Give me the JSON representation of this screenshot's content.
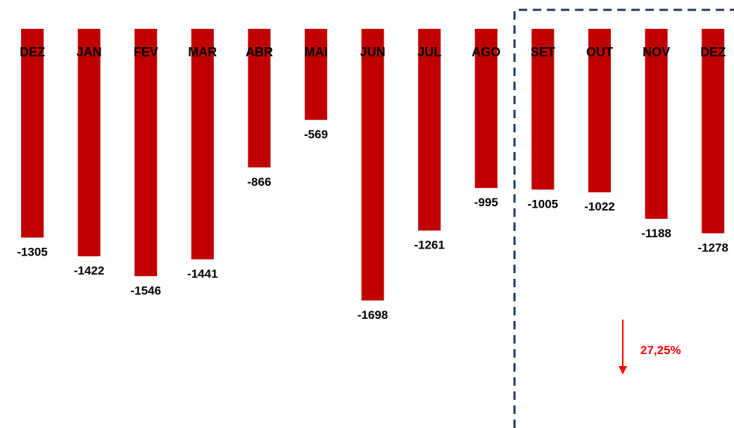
{
  "chart_data": {
    "type": "bar",
    "title": "",
    "xlabel": "",
    "ylabel": "",
    "categories": [
      "DEZ",
      "JAN",
      "FEV",
      "MAR",
      "ABR",
      "MAI",
      "JUN",
      "JUL",
      "AGO",
      "SET",
      "OUT",
      "NOV",
      "DEZ"
    ],
    "values": [
      -1305,
      -1422,
      -1546,
      -1441,
      -866,
      -569,
      -1698,
      -1261,
      -995,
      -1005,
      -1022,
      -1188,
      -1278
    ],
    "value_labels": [
      "-1305",
      "-1422",
      "-1546",
      "-1441",
      "-866",
      "-569",
      "-1698",
      "-1261",
      "-995",
      "-1005",
      "-1022",
      "-1188",
      "-1278"
    ],
    "ylim": [
      -2500,
      0
    ],
    "grid": false,
    "legend": "none",
    "bar_color": "#C00000",
    "axis_position": "top",
    "highlight": {
      "from_category_index": 9,
      "to_category_index": 12,
      "style": "dashed-box",
      "color": "#1F3864"
    },
    "annotation": {
      "text": "27,25%",
      "direction": "down",
      "color": "#FF0000"
    }
  }
}
